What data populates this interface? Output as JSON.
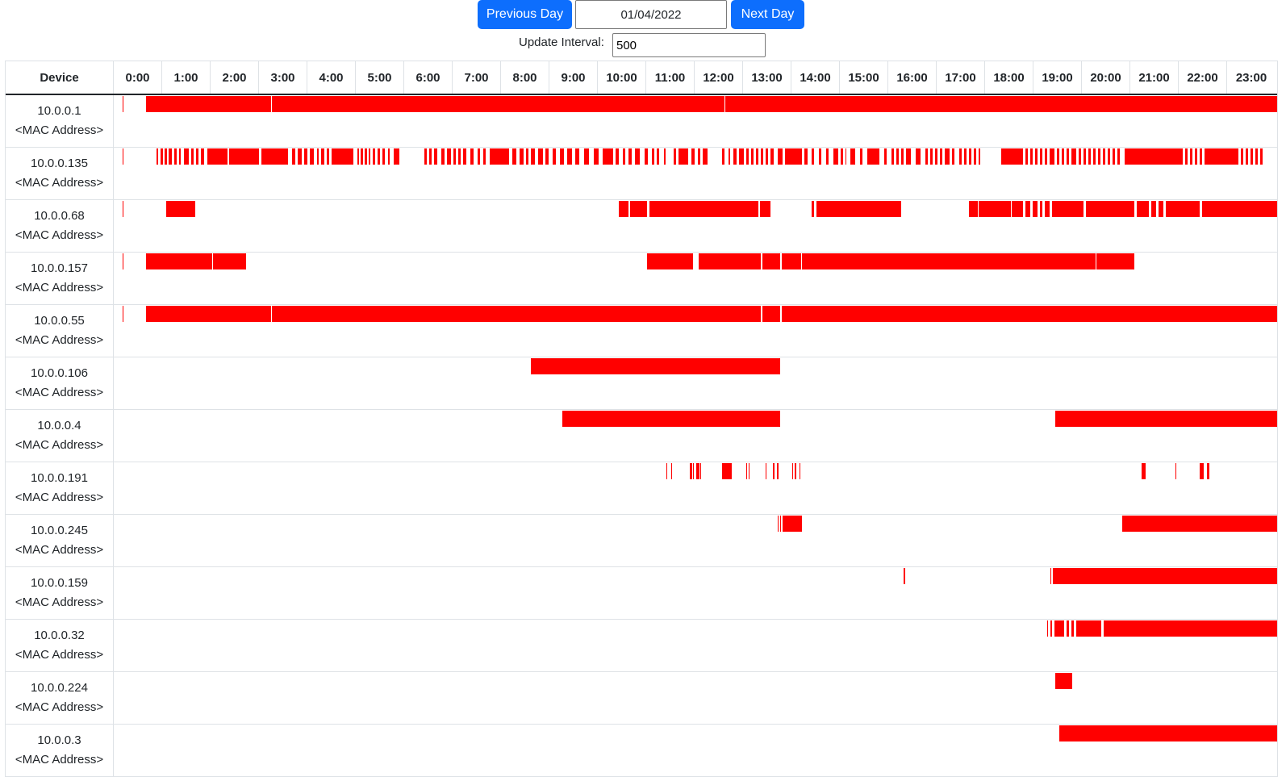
{
  "controls": {
    "previous_label": "Previous Day",
    "next_label": "Next Day",
    "date_value": "01/04/2022",
    "interval_label": "Update Interval:",
    "interval_value": "500"
  },
  "table": {
    "device_header": "Device",
    "hours": [
      "0:00",
      "1:00",
      "2:00",
      "3:00",
      "4:00",
      "5:00",
      "6:00",
      "7:00",
      "8:00",
      "9:00",
      "10:00",
      "11:00",
      "12:00",
      "13:00",
      "14:00",
      "15:00",
      "16:00",
      "17:00",
      "18:00",
      "19:00",
      "20:00",
      "21:00",
      "22:00",
      "23:00"
    ],
    "bar_color": "#ff0000"
  },
  "devices": [
    {
      "ip": "10.0.0.1",
      "mac": "<MAC Address>",
      "segments": [
        [
          0.18,
          0.2
        ],
        [
          0.67,
          3.25
        ],
        [
          3.27,
          12.6
        ],
        [
          12.62,
          24
        ]
      ]
    },
    {
      "ip": "10.0.0.135",
      "mac": "<MAC Address>",
      "segments": [
        [
          0.18,
          0.2
        ],
        [
          0.88,
          0.92
        ],
        [
          0.97,
          1.01
        ],
        [
          1.05,
          1.1
        ],
        [
          1.14,
          1.2
        ],
        [
          1.25,
          1.3
        ],
        [
          1.34,
          1.38
        ],
        [
          1.45,
          1.55
        ],
        [
          1.6,
          1.65
        ],
        [
          1.7,
          1.75
        ],
        [
          1.8,
          1.86
        ],
        [
          1.93,
          2.35
        ],
        [
          2.38,
          3.0
        ],
        [
          3.05,
          3.6
        ],
        [
          3.68,
          3.75
        ],
        [
          3.8,
          3.88
        ],
        [
          3.92,
          4.0
        ],
        [
          4.05,
          4.12
        ],
        [
          4.2,
          4.22
        ],
        [
          4.28,
          4.35
        ],
        [
          4.4,
          4.45
        ],
        [
          4.5,
          4.95
        ],
        [
          5.02,
          5.06
        ],
        [
          5.1,
          5.14
        ],
        [
          5.18,
          5.22
        ],
        [
          5.26,
          5.3
        ],
        [
          5.35,
          5.4
        ],
        [
          5.45,
          5.5
        ],
        [
          5.55,
          5.6
        ],
        [
          5.66,
          5.7
        ],
        [
          5.78,
          5.9
        ],
        [
          6.4,
          6.45
        ],
        [
          6.5,
          6.55
        ],
        [
          6.6,
          6.68
        ],
        [
          6.75,
          6.82
        ],
        [
          6.88,
          6.95
        ],
        [
          7.0,
          7.05
        ],
        [
          7.1,
          7.15
        ],
        [
          7.2,
          7.28
        ],
        [
          7.35,
          7.42
        ],
        [
          7.5,
          7.55
        ],
        [
          7.62,
          7.68
        ],
        [
          7.75,
          8.15
        ],
        [
          8.22,
          8.3
        ],
        [
          8.38,
          8.45
        ],
        [
          8.5,
          8.55
        ],
        [
          8.6,
          8.68
        ],
        [
          8.75,
          8.85
        ],
        [
          8.9,
          8.97
        ],
        [
          9.05,
          9.12
        ],
        [
          9.2,
          9.28
        ],
        [
          9.35,
          9.45
        ],
        [
          9.52,
          9.6
        ],
        [
          9.7,
          9.8
        ],
        [
          9.9,
          10.0
        ],
        [
          10.08,
          10.3
        ],
        [
          10.35,
          10.42
        ],
        [
          10.5,
          10.55
        ],
        [
          10.62,
          10.68
        ],
        [
          10.75,
          10.85
        ],
        [
          10.95,
          11.02
        ],
        [
          11.1,
          11.15
        ],
        [
          11.2,
          11.25
        ],
        [
          11.35,
          11.38
        ],
        [
          11.55,
          11.6
        ],
        [
          11.65,
          11.85
        ],
        [
          11.92,
          11.98
        ],
        [
          12.05,
          12.1
        ],
        [
          12.15,
          12.25
        ],
        [
          12.55,
          12.6
        ],
        [
          12.68,
          12.72
        ],
        [
          12.78,
          12.85
        ],
        [
          12.9,
          13.0
        ],
        [
          13.05,
          13.1
        ],
        [
          13.15,
          13.2
        ],
        [
          13.25,
          13.3
        ],
        [
          13.35,
          13.4
        ],
        [
          13.45,
          13.5
        ],
        [
          13.55,
          13.62
        ],
        [
          13.7,
          13.8
        ],
        [
          13.85,
          14.2
        ],
        [
          14.25,
          14.32
        ],
        [
          14.4,
          14.45
        ],
        [
          14.55,
          14.6
        ],
        [
          14.7,
          14.75
        ],
        [
          14.85,
          14.95
        ],
        [
          15.0,
          15.05
        ],
        [
          15.1,
          15.12
        ],
        [
          15.2,
          15.3
        ],
        [
          15.4,
          15.45
        ],
        [
          15.55,
          15.8
        ],
        [
          15.9,
          15.95
        ],
        [
          16.05,
          16.1
        ],
        [
          16.15,
          16.2
        ],
        [
          16.25,
          16.3
        ],
        [
          16.35,
          16.45
        ],
        [
          16.55,
          16.65
        ],
        [
          16.75,
          16.8
        ],
        [
          16.85,
          16.9
        ],
        [
          16.95,
          17.0
        ],
        [
          17.05,
          17.1
        ],
        [
          17.15,
          17.25
        ],
        [
          17.3,
          17.35
        ],
        [
          17.45,
          17.5
        ],
        [
          17.55,
          17.6
        ],
        [
          17.65,
          17.7
        ],
        [
          17.75,
          17.8
        ],
        [
          17.85,
          17.87
        ],
        [
          18.3,
          18.75
        ],
        [
          18.8,
          18.85
        ],
        [
          18.9,
          18.95
        ],
        [
          19.0,
          19.05
        ],
        [
          19.1,
          19.15
        ],
        [
          19.2,
          19.25
        ],
        [
          19.3,
          19.4
        ],
        [
          19.45,
          19.5
        ],
        [
          19.55,
          19.6
        ],
        [
          19.65,
          19.7
        ],
        [
          19.75,
          19.85
        ],
        [
          19.9,
          19.95
        ],
        [
          20.0,
          20.05
        ],
        [
          20.1,
          20.15
        ],
        [
          20.2,
          20.25
        ],
        [
          20.3,
          20.35
        ],
        [
          20.4,
          20.45
        ],
        [
          20.5,
          20.55
        ],
        [
          20.6,
          20.65
        ],
        [
          20.7,
          20.75
        ],
        [
          20.85,
          22.05
        ],
        [
          22.1,
          22.15
        ],
        [
          22.2,
          22.25
        ],
        [
          22.3,
          22.35
        ],
        [
          22.4,
          22.45
        ],
        [
          22.5,
          23.2
        ],
        [
          23.25,
          23.3
        ],
        [
          23.35,
          23.4
        ],
        [
          23.45,
          23.5
        ],
        [
          23.55,
          23.6
        ],
        [
          23.65,
          23.7
        ]
      ]
    },
    {
      "ip": "10.0.0.68",
      "mac": "<MAC Address>",
      "segments": [
        [
          0.18,
          0.2
        ],
        [
          1.08,
          1.68
        ],
        [
          10.42,
          10.62
        ],
        [
          10.65,
          11.0
        ],
        [
          11.05,
          13.3
        ],
        [
          13.33,
          13.55
        ],
        [
          14.4,
          14.45
        ],
        [
          14.5,
          16.25
        ],
        [
          17.65,
          17.82
        ],
        [
          17.85,
          18.5
        ],
        [
          18.53,
          18.75
        ],
        [
          18.8,
          18.9
        ],
        [
          18.95,
          19.05
        ],
        [
          19.1,
          19.15
        ],
        [
          19.2,
          19.3
        ],
        [
          19.35,
          20.0
        ],
        [
          20.05,
          21.05
        ],
        [
          21.1,
          21.35
        ],
        [
          21.4,
          21.5
        ],
        [
          21.55,
          21.65
        ],
        [
          21.7,
          22.4
        ],
        [
          22.45,
          24
        ]
      ]
    },
    {
      "ip": "10.0.0.157",
      "mac": "<MAC Address>",
      "segments": [
        [
          0.18,
          0.2
        ],
        [
          0.67,
          2.03
        ],
        [
          2.05,
          2.73
        ],
        [
          11.0,
          11.95
        ],
        [
          12.07,
          13.35
        ],
        [
          13.38,
          13.75
        ],
        [
          13.78,
          14.18
        ],
        [
          14.2,
          20.25
        ],
        [
          20.27,
          21.05
        ]
      ]
    },
    {
      "ip": "10.0.0.55",
      "mac": "<MAC Address>",
      "segments": [
        [
          0.18,
          0.2
        ],
        [
          0.67,
          3.25
        ],
        [
          3.27,
          13.35
        ],
        [
          13.38,
          13.75
        ],
        [
          13.78,
          24
        ]
      ]
    },
    {
      "ip": "10.0.0.106",
      "mac": "<MAC Address>",
      "segments": [
        [
          8.6,
          13.75
        ]
      ]
    },
    {
      "ip": "10.0.0.4",
      "mac": "<MAC Address>",
      "segments": [
        [
          9.25,
          13.75
        ],
        [
          19.42,
          24
        ]
      ]
    },
    {
      "ip": "10.0.0.191",
      "mac": "<MAC Address>",
      "segments": [
        [
          11.4,
          11.42
        ],
        [
          11.5,
          11.52
        ],
        [
          11.88,
          11.93
        ],
        [
          11.95,
          11.97
        ],
        [
          12.02,
          12.08
        ],
        [
          12.1,
          12.12
        ],
        [
          12.55,
          12.75
        ],
        [
          13.05,
          13.07
        ],
        [
          13.1,
          13.12
        ],
        [
          13.45,
          13.47
        ],
        [
          13.6,
          13.63
        ],
        [
          13.68,
          13.72
        ],
        [
          14.0,
          14.02
        ],
        [
          14.05,
          14.08
        ],
        [
          14.15,
          14.17
        ],
        [
          21.2,
          21.28
        ],
        [
          21.9,
          21.92
        ],
        [
          22.4,
          22.48
        ],
        [
          22.55,
          22.6
        ]
      ]
    },
    {
      "ip": "10.0.0.245",
      "mac": "<MAC Address>",
      "segments": [
        [
          13.7,
          13.72
        ],
        [
          13.75,
          13.77
        ],
        [
          13.8,
          14.2
        ],
        [
          20.8,
          24
        ]
      ]
    },
    {
      "ip": "10.0.0.159",
      "mac": "<MAC Address>",
      "segments": [
        [
          16.3,
          16.33
        ],
        [
          19.32,
          19.34
        ],
        [
          19.37,
          24
        ]
      ]
    },
    {
      "ip": "10.0.0.32",
      "mac": "<MAC Address>",
      "segments": [
        [
          19.25,
          19.28
        ],
        [
          19.32,
          19.35
        ],
        [
          19.4,
          19.6
        ],
        [
          19.65,
          19.7
        ],
        [
          19.75,
          19.8
        ],
        [
          19.85,
          20.38
        ],
        [
          20.42,
          24
        ]
      ]
    },
    {
      "ip": "10.0.0.224",
      "mac": "<MAC Address>",
      "segments": [
        [
          19.43,
          19.78
        ]
      ]
    },
    {
      "ip": "10.0.0.3",
      "mac": "<MAC Address>",
      "segments": [
        [
          19.5,
          24
        ]
      ]
    }
  ]
}
